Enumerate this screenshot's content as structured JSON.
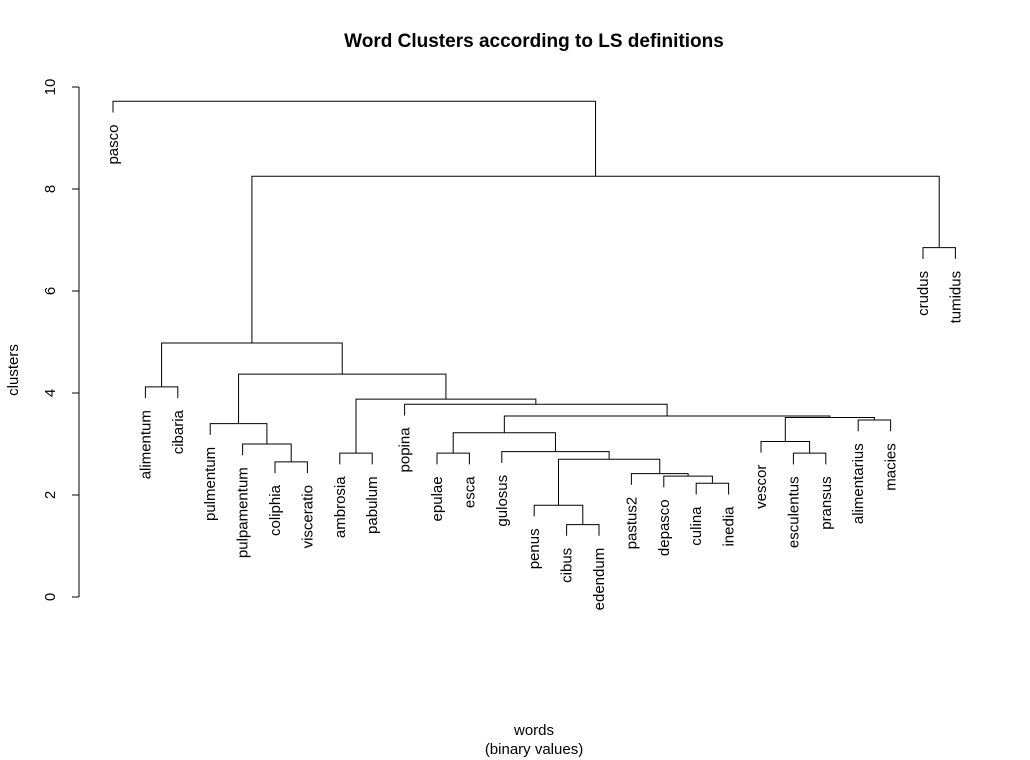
{
  "chart_data": {
    "type": "dendrogram",
    "title": "Word Clusters according to LS definitions",
    "xlabel": "words",
    "xlabel2": "(binary values)",
    "ylabel": "clusters",
    "ylim": [
      0,
      10
    ],
    "yticks": [
      0,
      2,
      4,
      6,
      8,
      10
    ],
    "leaves": [
      "pasco",
      "alimentum",
      "cibaria",
      "pulmentum",
      "pulpamentum",
      "coliphia",
      "visceratio",
      "ambrosia",
      "pabulum",
      "popina",
      "epulae",
      "esca",
      "gulosus",
      "penus",
      "cibus",
      "edendum",
      "pastus2",
      "depasco",
      "culina",
      "inedia",
      "vescor",
      "esculentus",
      "pransus",
      "alimentarius",
      "macies",
      "crudus",
      "tumidus"
    ],
    "merges": [
      {
        "a": "L:coliphia",
        "b": "L:visceratio",
        "height": 2.65
      },
      {
        "a": "L:pulpamentum",
        "b": "M:0",
        "height": 3.0
      },
      {
        "a": "L:pulmentum",
        "b": "M:1",
        "height": 3.4
      },
      {
        "a": "L:ambrosia",
        "b": "L:pabulum",
        "height": 2.82
      },
      {
        "a": "L:epulae",
        "b": "L:esca",
        "height": 2.82
      },
      {
        "a": "L:cibus",
        "b": "L:edendum",
        "height": 1.42
      },
      {
        "a": "L:penus",
        "b": "M:5",
        "height": 1.8
      },
      {
        "a": "L:culina",
        "b": "L:inedia",
        "height": 2.23
      },
      {
        "a": "L:depasco",
        "b": "M:7",
        "height": 2.37
      },
      {
        "a": "L:pastus2",
        "b": "M:8",
        "height": 2.42
      },
      {
        "a": "M:6",
        "b": "M:9",
        "height": 2.7
      },
      {
        "a": "L:gulosus",
        "b": "M:10",
        "height": 2.85
      },
      {
        "a": "M:4",
        "b": "M:11",
        "height": 3.22
      },
      {
        "a": "L:esculentus",
        "b": "L:pransus",
        "height": 2.82
      },
      {
        "a": "L:vescor",
        "b": "M:13",
        "height": 3.05
      },
      {
        "a": "L:alimentarius",
        "b": "L:macies",
        "height": 3.47
      },
      {
        "a": "M:14",
        "b": "M:15",
        "height": 3.52
      },
      {
        "a": "M:12",
        "b": "M:16",
        "height": 3.55
      },
      {
        "a": "L:popina",
        "b": "M:17",
        "height": 3.78
      },
      {
        "a": "M:3",
        "b": "M:18",
        "height": 3.88
      },
      {
        "a": "M:2",
        "b": "M:19",
        "height": 4.37
      },
      {
        "a": "L:alimentum",
        "b": "L:cibaria",
        "height": 4.12
      },
      {
        "a": "M:21",
        "b": "M:20",
        "height": 4.98
      },
      {
        "a": "L:crudus",
        "b": "L:tumidus",
        "height": 6.85
      },
      {
        "a": "M:22",
        "b": "M:23",
        "height": 8.25
      },
      {
        "a": "L:pasco",
        "b": "M:24",
        "height": 9.72
      }
    ]
  }
}
